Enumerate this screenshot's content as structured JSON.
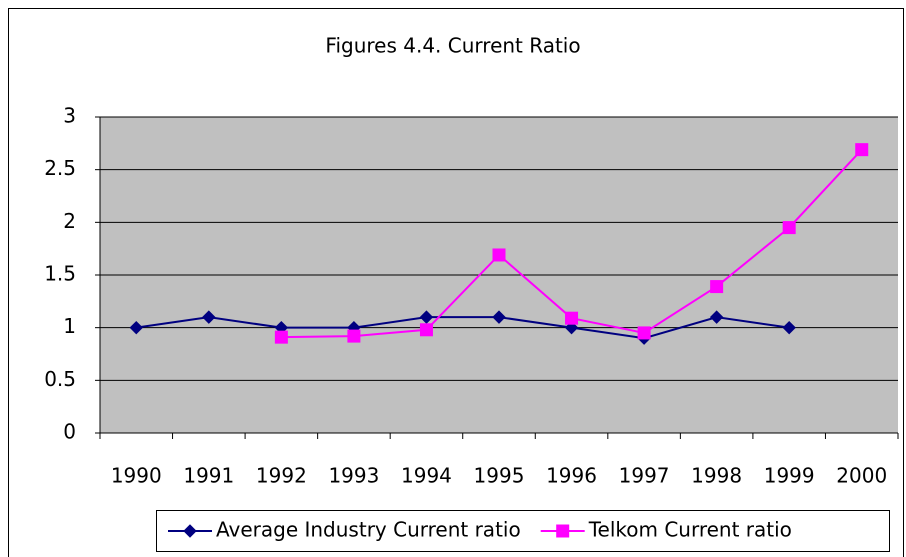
{
  "chart_data": {
    "type": "line",
    "title": "Figures 4.4. Current Ratio",
    "categories": [
      "1990",
      "1991",
      "1992",
      "1993",
      "1994",
      "1995",
      "1996",
      "1997",
      "1998",
      "1999",
      "2000"
    ],
    "series": [
      {
        "name": "Average Industry Current ratio",
        "color": "#000080",
        "marker": "diamond",
        "values": [
          1,
          1.1,
          1,
          1,
          1.1,
          1.1,
          1,
          0.9,
          1.1,
          1,
          null
        ]
      },
      {
        "name": "Telkom Current ratio",
        "color": "#ff00ff",
        "marker": "square",
        "values": [
          null,
          null,
          0.91,
          0.92,
          0.98,
          1.69,
          1.09,
          0.95,
          1.39,
          1.95,
          2.69
        ]
      }
    ],
    "ylim": [
      0,
      3
    ],
    "yticks": [
      0,
      0.5,
      1,
      1.5,
      2,
      2.5,
      3
    ],
    "grid": true,
    "plot_background": "#c0c0c0",
    "legend": "bottom"
  }
}
